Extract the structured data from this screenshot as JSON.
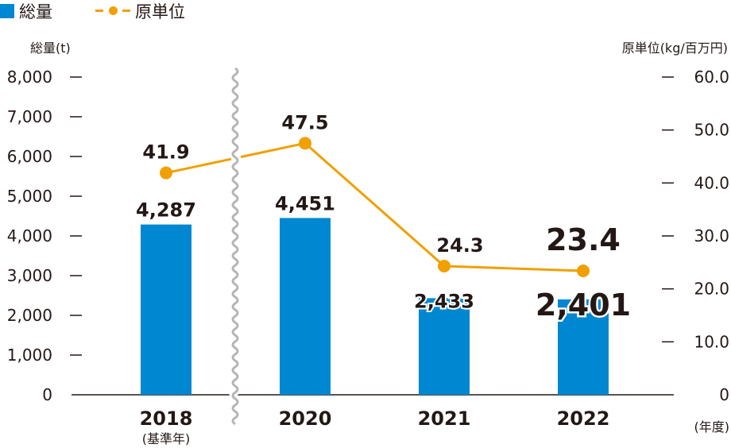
{
  "legend": {
    "total_label": "総量",
    "intensity_label": "原単位"
  },
  "axes": {
    "left_title": "総量(t)",
    "right_title": "原単位(kg/百万円)",
    "x_unit": "(年度)"
  },
  "colors": {
    "bar": "#0087d1",
    "line": "#f0a000",
    "text": "#231815",
    "axis": "#231815",
    "break": "#b5b5b5"
  },
  "chart_data": {
    "type": "bar",
    "categories": [
      "2018",
      "2020",
      "2021",
      "2022"
    ],
    "category_sublabels": [
      "(基準年)",
      "",
      "",
      ""
    ],
    "series": [
      {
        "name": "総量",
        "type": "bar",
        "axis": "left",
        "values": [
          4287,
          4451,
          2433,
          2401
        ],
        "labels": [
          "4,287",
          "4,451",
          "2,433",
          "2,401"
        ]
      },
      {
        "name": "原単位",
        "type": "line",
        "axis": "right",
        "values": [
          41.9,
          47.5,
          24.3,
          23.4
        ],
        "labels": [
          "41.9",
          "47.5",
          "24.3",
          "23.4"
        ]
      }
    ],
    "left_axis": {
      "ylim": [
        0,
        8000
      ],
      "ticks": [
        0,
        1000,
        2000,
        3000,
        4000,
        5000,
        6000,
        7000,
        8000
      ],
      "tick_labels": [
        "0",
        "1,000",
        "2,000",
        "3,000",
        "4,000",
        "5,000",
        "6,000",
        "7,000",
        "8,000"
      ]
    },
    "right_axis": {
      "ylim": [
        0,
        60
      ],
      "ticks": [
        0,
        10,
        20,
        30,
        40,
        50,
        60
      ],
      "tick_labels": [
        "0",
        "10.0",
        "20.0",
        "30.0",
        "40.0",
        "50.0",
        "60.0"
      ]
    },
    "axis_break": "between 2018 and 2020",
    "highlighted_category": "2022",
    "grid": false,
    "legend_position": "top-left"
  }
}
